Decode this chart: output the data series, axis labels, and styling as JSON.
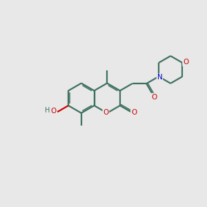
{
  "background_color": "#e8e8e8",
  "bond_color": "#3d7060",
  "atom_colors": {
    "O": "#cc0000",
    "N": "#0000cc",
    "C": "#3d7060",
    "H": "#3d7060"
  },
  "figsize": [
    3.0,
    3.0
  ],
  "dpi": 100,
  "bl": 0.72
}
